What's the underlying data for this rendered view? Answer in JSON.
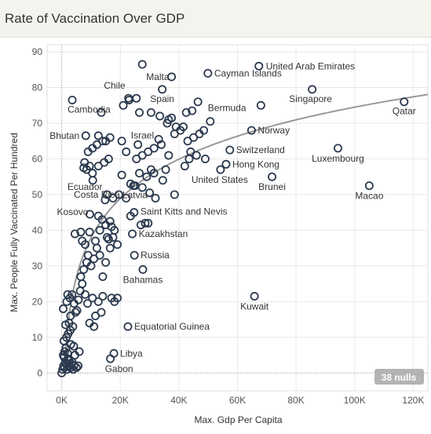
{
  "header": {
    "title": "Rate of Vaccination Over GDP"
  },
  "nulls_badge": "38 nulls",
  "colors": {
    "marker": "#2b3a4e",
    "trend": "#999999",
    "grid": "#e8e8e8",
    "badge": "#b3b3b3"
  },
  "chart_data": {
    "type": "scatter",
    "title": "Rate of Vaccination Over GDP",
    "xlabel": "Max. Gdp Per Capita",
    "ylabel": "Max. People Fully Vaccinated Per Hundred",
    "xlim": [
      -5000,
      125000
    ],
    "ylim": [
      -5,
      92
    ],
    "x_ticks": [
      0,
      20000,
      40000,
      60000,
      80000,
      100000,
      120000
    ],
    "x_tick_labels": [
      "0K",
      "20K",
      "40K",
      "60K",
      "80K",
      "100K",
      "120K"
    ],
    "y_ticks": [
      0,
      10,
      20,
      30,
      40,
      50,
      60,
      70,
      80,
      90
    ],
    "y_tick_labels": [
      "0",
      "10",
      "20",
      "30",
      "40",
      "50",
      "60",
      "70",
      "80",
      "90"
    ],
    "grid": true,
    "trend_line": "logarithmic",
    "labeled_points": [
      {
        "name": "United Arab Emirates",
        "x": 67300,
        "y": 86
      },
      {
        "name": "Malta",
        "x": 37500,
        "y": 83
      },
      {
        "name": "Cayman Islands",
        "x": 49900,
        "y": 84
      },
      {
        "name": "Chile",
        "x": 22800,
        "y": 77
      },
      {
        "name": "Singapore",
        "x": 85500,
        "y": 79.5
      },
      {
        "name": "Qatar",
        "x": 116900,
        "y": 76
      },
      {
        "name": "Cambodia",
        "x": 3600,
        "y": 76.5
      },
      {
        "name": "Spain",
        "x": 34300,
        "y": 79.5
      },
      {
        "name": "Bermuda",
        "x": 50700,
        "y": 70.5
      },
      {
        "name": "Israel",
        "x": 33100,
        "y": 65.5
      },
      {
        "name": "Norway",
        "x": 64800,
        "y": 68
      },
      {
        "name": "Bhutan",
        "x": 8200,
        "y": 66.5
      },
      {
        "name": "Switzerland",
        "x": 57400,
        "y": 62.5
      },
      {
        "name": "Luxembourg",
        "x": 94300,
        "y": 63
      },
      {
        "name": "Hong Kong",
        "x": 56100,
        "y": 58.5
      },
      {
        "name": "United States",
        "x": 54200,
        "y": 57
      },
      {
        "name": "Ecuador",
        "x": 10600,
        "y": 54
      },
      {
        "name": "Brunei",
        "x": 71800,
        "y": 55
      },
      {
        "name": "Costa Rica",
        "x": 15500,
        "y": 50
      },
      {
        "name": "Latvia",
        "x": 25000,
        "y": 52.5
      },
      {
        "name": "Macao",
        "x": 105000,
        "y": 52.5
      },
      {
        "name": "Kosovo",
        "x": 9600,
        "y": 44.5
      },
      {
        "name": "Saint Kitts and Nevis",
        "x": 24700,
        "y": 45
      },
      {
        "name": "Kazakhstan",
        "x": 24100,
        "y": 39
      },
      {
        "name": "Russia",
        "x": 24800,
        "y": 33
      },
      {
        "name": "Bahamas",
        "x": 27700,
        "y": 29
      },
      {
        "name": "Kuwait",
        "x": 65800,
        "y": 21.5
      },
      {
        "name": "Equatorial Guinea",
        "x": 22600,
        "y": 13
      },
      {
        "name": "Libya",
        "x": 17800,
        "y": 5.5
      },
      {
        "name": "Gabon",
        "x": 16600,
        "y": 4
      }
    ],
    "points": [
      [
        0,
        0
      ],
      [
        300,
        1
      ],
      [
        600,
        2
      ],
      [
        900,
        1.5
      ],
      [
        1200,
        3
      ],
      [
        1500,
        2.5
      ],
      [
        1800,
        1
      ],
      [
        2100,
        4
      ],
      [
        2400,
        3.5
      ],
      [
        2700,
        2
      ],
      [
        3000,
        1.5
      ],
      [
        3300,
        2.5
      ],
      [
        3600,
        3
      ],
      [
        3900,
        1
      ],
      [
        4200,
        2
      ],
      [
        5000,
        1.5
      ],
      [
        800,
        4.5
      ],
      [
        1000,
        6
      ],
      [
        500,
        5
      ],
      [
        1400,
        7
      ],
      [
        2000,
        5.5
      ],
      [
        700,
        9
      ],
      [
        1600,
        10
      ],
      [
        2200,
        11
      ],
      [
        2900,
        12
      ],
      [
        3100,
        8
      ],
      [
        4100,
        7.5
      ],
      [
        4500,
        5
      ],
      [
        5600,
        2
      ],
      [
        6000,
        6
      ],
      [
        1300,
        13.5
      ],
      [
        2500,
        14
      ],
      [
        3000,
        16
      ],
      [
        3800,
        13
      ],
      [
        4700,
        17
      ],
      [
        500,
        18
      ],
      [
        1700,
        20
      ],
      [
        2800,
        21
      ],
      [
        3500,
        22
      ],
      [
        2000,
        22
      ],
      [
        4200,
        19.5
      ],
      [
        5200,
        17.5
      ],
      [
        5700,
        20.5
      ],
      [
        6300,
        23
      ],
      [
        7000,
        25
      ],
      [
        8000,
        22
      ],
      [
        8800,
        19.5
      ],
      [
        10500,
        21
      ],
      [
        11500,
        16
      ],
      [
        9500,
        14
      ],
      [
        11000,
        13
      ],
      [
        13500,
        17
      ],
      [
        12500,
        20
      ],
      [
        14000,
        21.5
      ],
      [
        17000,
        21
      ],
      [
        18000,
        20
      ],
      [
        19000,
        21
      ],
      [
        6500,
        27
      ],
      [
        7500,
        29
      ],
      [
        8500,
        31
      ],
      [
        9000,
        33
      ],
      [
        10000,
        30
      ],
      [
        11000,
        32
      ],
      [
        12000,
        35
      ],
      [
        13000,
        33
      ],
      [
        14000,
        27
      ],
      [
        15000,
        31
      ],
      [
        16500,
        35
      ],
      [
        4500,
        39
      ],
      [
        6500,
        39.5
      ],
      [
        7000,
        37
      ],
      [
        8000,
        36
      ],
      [
        9500,
        39.5
      ],
      [
        11500,
        37
      ],
      [
        13000,
        40
      ],
      [
        15500,
        38
      ],
      [
        16000,
        37.5
      ],
      [
        17500,
        38
      ],
      [
        19000,
        36
      ],
      [
        12500,
        44
      ],
      [
        13800,
        43
      ],
      [
        15000,
        41.5
      ],
      [
        16500,
        42.5
      ],
      [
        17000,
        41
      ],
      [
        18000,
        40
      ],
      [
        23500,
        44
      ],
      [
        27000,
        41.5
      ],
      [
        28500,
        42
      ],
      [
        29500,
        42
      ],
      [
        14800,
        48.5
      ],
      [
        17500,
        49
      ],
      [
        19500,
        50
      ],
      [
        22000,
        49
      ],
      [
        24500,
        52.5
      ],
      [
        27500,
        52
      ],
      [
        30000,
        50.5
      ],
      [
        32000,
        49
      ],
      [
        38500,
        50
      ],
      [
        20500,
        55.5
      ],
      [
        23500,
        53
      ],
      [
        26500,
        56
      ],
      [
        29000,
        55
      ],
      [
        30500,
        57
      ],
      [
        31500,
        56
      ],
      [
        34500,
        54
      ],
      [
        35500,
        57
      ],
      [
        42000,
        58
      ],
      [
        43500,
        60
      ],
      [
        46000,
        61
      ],
      [
        49000,
        60
      ],
      [
        44000,
        62
      ],
      [
        7500,
        57.5
      ],
      [
        8500,
        57
      ],
      [
        9500,
        58
      ],
      [
        10500,
        56
      ],
      [
        12500,
        58
      ],
      [
        14500,
        59
      ],
      [
        16000,
        60
      ],
      [
        7800,
        59
      ],
      [
        9000,
        62
      ],
      [
        10500,
        63
      ],
      [
        12000,
        64
      ],
      [
        14000,
        65
      ],
      [
        16500,
        66
      ],
      [
        20500,
        65
      ],
      [
        25500,
        60
      ],
      [
        27500,
        61
      ],
      [
        29500,
        62
      ],
      [
        31500,
        63
      ],
      [
        34000,
        64
      ],
      [
        36500,
        61
      ],
      [
        12500,
        66.5
      ],
      [
        15000,
        65
      ],
      [
        22000,
        62
      ],
      [
        26000,
        64
      ],
      [
        13500,
        73
      ],
      [
        21000,
        75
      ],
      [
        23000,
        76.5
      ],
      [
        25500,
        77
      ],
      [
        26500,
        73
      ],
      [
        30500,
        73
      ],
      [
        33500,
        72
      ],
      [
        36500,
        71
      ],
      [
        37500,
        71.5
      ],
      [
        39000,
        69
      ],
      [
        40500,
        68
      ],
      [
        41500,
        69
      ],
      [
        43000,
        65
      ],
      [
        45000,
        66
      ],
      [
        47000,
        67
      ],
      [
        48500,
        68
      ],
      [
        36000,
        70
      ],
      [
        38500,
        67
      ],
      [
        42500,
        73
      ],
      [
        44500,
        73.5
      ],
      [
        46500,
        76
      ],
      [
        68000,
        75
      ],
      [
        27500,
        86.5
      ]
    ]
  }
}
